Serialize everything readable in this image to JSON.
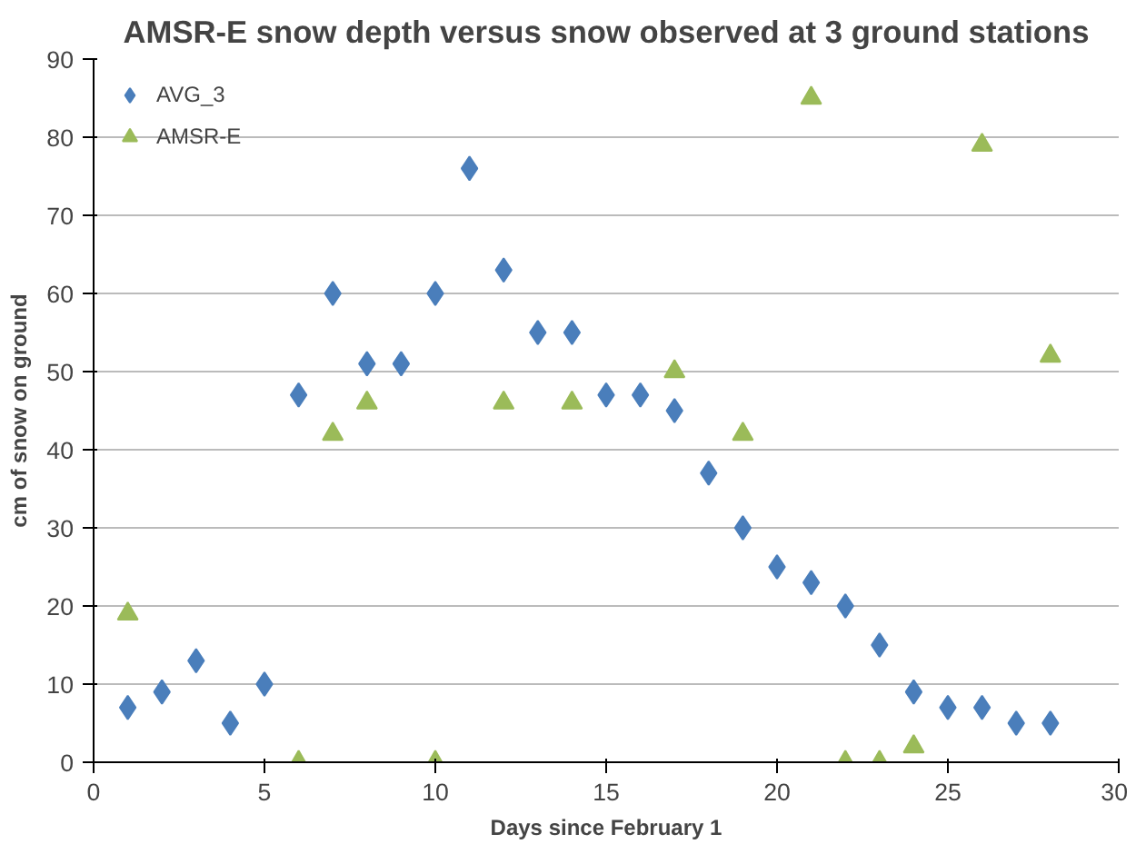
{
  "chart_data": {
    "type": "scatter",
    "title": "AMSR-E snow depth versus snow observed at 3 ground stations",
    "xlabel": "Days since February 1",
    "ylabel": "cm of snow on ground",
    "xlim": [
      0,
      30
    ],
    "xticks": [
      0,
      5,
      10,
      15,
      20,
      25,
      30
    ],
    "ylim": [
      0,
      90
    ],
    "yticks": [
      0,
      10,
      20,
      30,
      40,
      50,
      60,
      70,
      80,
      90
    ],
    "grid": "y",
    "legend": "top left",
    "series": [
      {
        "name": "AVG_3",
        "color": "#4a7ebb",
        "marker": "diamond",
        "x": [
          1,
          2,
          3,
          4,
          5,
          6,
          7,
          8,
          9,
          10,
          11,
          12,
          13,
          14,
          15,
          16,
          17,
          18,
          19,
          20,
          21,
          22,
          23,
          24,
          25,
          26,
          27,
          28
        ],
        "values": [
          7,
          9,
          13,
          5,
          10,
          47,
          60,
          51,
          51,
          60,
          76,
          63,
          55,
          55,
          47,
          47,
          45,
          37,
          30,
          25,
          23,
          20,
          15,
          9,
          7,
          7,
          5,
          5
        ]
      },
      {
        "name": "AMSR-E",
        "color": "#9bbb59",
        "marker": "triangle",
        "x": [
          1,
          6,
          7,
          8,
          10,
          12,
          14,
          17,
          19,
          21,
          22,
          23,
          24,
          26,
          28
        ],
        "values": [
          19,
          0,
          42,
          46,
          0,
          46,
          46,
          50,
          42,
          85,
          0,
          0,
          2,
          79,
          52
        ]
      }
    ]
  }
}
